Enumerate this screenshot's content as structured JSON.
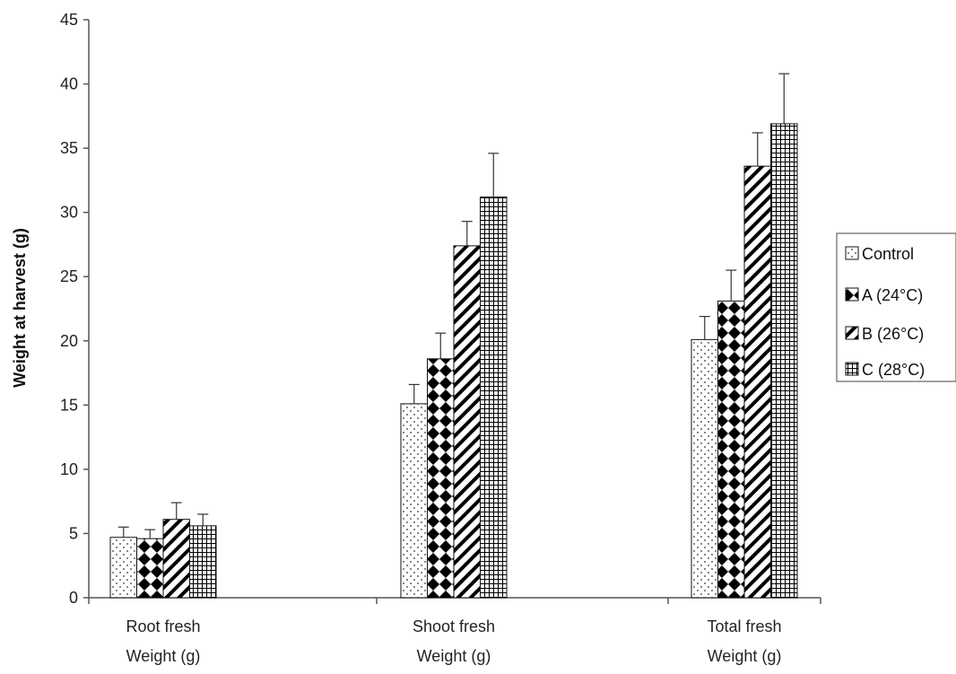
{
  "chart_data": {
    "type": "bar",
    "title": "",
    "ylabel": "Weight at harvest (g)",
    "xlabel": "",
    "ylim": [
      0,
      45
    ],
    "yticks": [
      0,
      5,
      10,
      15,
      20,
      25,
      30,
      35,
      40,
      45
    ],
    "categories": [
      [
        "Root fresh",
        "Weight (g)"
      ],
      [
        "Shoot fresh",
        "Weight (g)"
      ],
      [
        "Total fresh",
        "Weight (g)"
      ]
    ],
    "series": [
      {
        "name": "Control",
        "values": [
          4.7,
          15.1,
          20.1
        ],
        "errors": [
          0.8,
          1.5,
          1.8
        ],
        "pattern": "dots"
      },
      {
        "name": "A  (24°C)",
        "values": [
          4.6,
          18.6,
          23.1
        ],
        "errors": [
          0.7,
          2.0,
          2.4
        ],
        "pattern": "diamonds"
      },
      {
        "name": "B (26°C)",
        "values": [
          6.1,
          27.4,
          33.6
        ],
        "errors": [
          1.3,
          1.9,
          2.6
        ],
        "pattern": "diagonal"
      },
      {
        "name": "C (28°C)",
        "values": [
          5.6,
          31.2,
          36.9
        ],
        "errors": [
          0.9,
          3.4,
          3.9
        ],
        "pattern": "grid"
      }
    ],
    "grid": false,
    "legend_position": "right"
  }
}
